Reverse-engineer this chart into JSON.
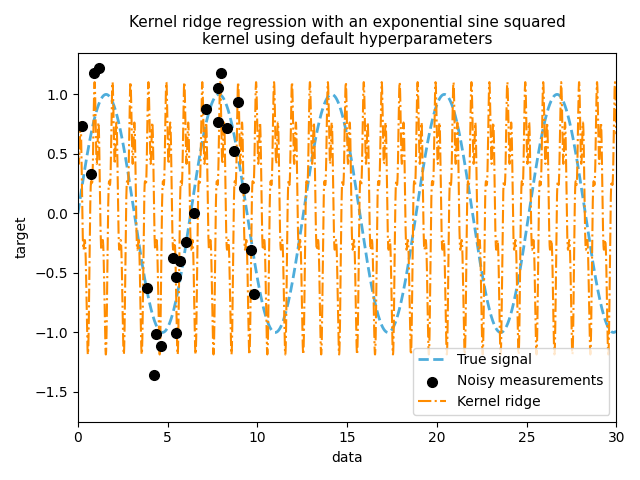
{
  "title": "Kernel ridge regression with an exponential sine squared\nkernel using default hyperparameters",
  "xlabel": "data",
  "ylabel": "target",
  "xlim": [
    0,
    30
  ],
  "ylim": [
    -1.75,
    1.35
  ],
  "true_signal_color": "#4eaddb",
  "true_signal_linestyle": "--",
  "true_signal_linewidth": 2.0,
  "true_signal_label": "True signal",
  "kernel_ridge_color": "#ff8c00",
  "kernel_ridge_linestyle": "-.",
  "kernel_ridge_linewidth": 1.5,
  "kernel_ridge_label": "Kernel ridge",
  "noisy_color": "black",
  "noisy_label": "Noisy measurements",
  "noisy_marker": "o",
  "noisy_markersize": 7,
  "rng_seed": 0,
  "n_samples": 25,
  "noise_level": 0.3,
  "alpha": 0.01,
  "legend_loc": "lower right",
  "figsize": [
    6.4,
    4.8
  ],
  "dpi": 100,
  "true_period": 6.28318530718
}
